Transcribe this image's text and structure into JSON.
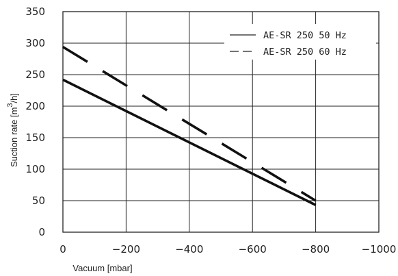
{
  "chart_data": {
    "type": "line",
    "xlabel": "Vacuum [mbar]",
    "ylabel": "Suction rate [m",
    "ylabel_superscript": "3",
    "ylabel_suffix": "/h]",
    "xlim": [
      0,
      -1000
    ],
    "ylim": [
      0,
      350
    ],
    "x_ticks": [
      0,
      -200,
      -400,
      -600,
      -800,
      -1000
    ],
    "x_tick_labels": [
      "0",
      "−200",
      "−400",
      "−600",
      "−800",
      "−1000"
    ],
    "y_ticks": [
      0,
      50,
      100,
      150,
      200,
      250,
      300,
      350
    ],
    "y_tick_labels": [
      "0",
      "50",
      "100",
      "150",
      "200",
      "250",
      "300",
      "350"
    ],
    "grid": true,
    "legend_position": "top-right",
    "series": [
      {
        "name": "AE-SR 250 50 Hz",
        "line_style": "solid",
        "x": [
          0,
          -800
        ],
        "y": [
          242,
          43
        ]
      },
      {
        "name": "AE-SR 250 60 Hz",
        "line_style": "dashed",
        "x": [
          0,
          -800
        ],
        "y": [
          294,
          50
        ]
      }
    ]
  }
}
